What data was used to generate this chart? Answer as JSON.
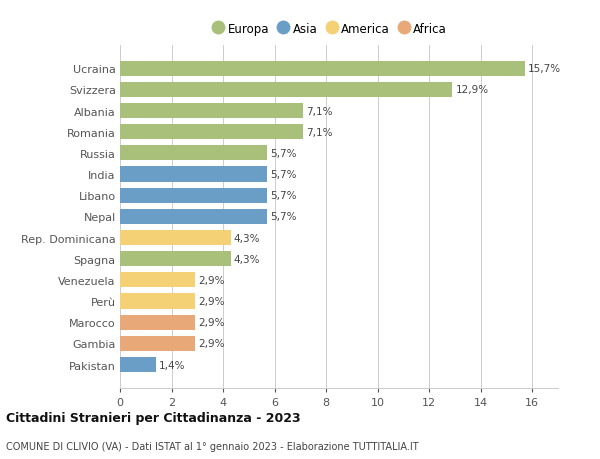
{
  "categories": [
    "Ucraina",
    "Svizzera",
    "Albania",
    "Romania",
    "Russia",
    "India",
    "Libano",
    "Nepal",
    "Rep. Dominicana",
    "Spagna",
    "Venezuela",
    "Perù",
    "Marocco",
    "Gambia",
    "Pakistan"
  ],
  "values": [
    15.7,
    12.9,
    7.1,
    7.1,
    5.7,
    5.7,
    5.7,
    5.7,
    4.3,
    4.3,
    2.9,
    2.9,
    2.9,
    2.9,
    1.4
  ],
  "labels": [
    "15,7%",
    "12,9%",
    "7,1%",
    "7,1%",
    "5,7%",
    "5,7%",
    "5,7%",
    "5,7%",
    "4,3%",
    "4,3%",
    "2,9%",
    "2,9%",
    "2,9%",
    "2,9%",
    "1,4%"
  ],
  "continents": [
    "Europa",
    "Europa",
    "Europa",
    "Europa",
    "Europa",
    "Asia",
    "Asia",
    "Asia",
    "America",
    "Europa",
    "America",
    "America",
    "Africa",
    "Africa",
    "Asia"
  ],
  "colors": {
    "Europa": "#a8c07a",
    "Asia": "#6b9ec7",
    "America": "#f5d176",
    "Africa": "#e8a878"
  },
  "xlim": [
    0,
    17
  ],
  "xticks": [
    0,
    2,
    4,
    6,
    8,
    10,
    12,
    14,
    16
  ],
  "title": "Cittadini Stranieri per Cittadinanza - 2023",
  "subtitle": "COMUNE DI CLIVIO (VA) - Dati ISTAT al 1° gennaio 2023 - Elaborazione TUTTITALIA.IT",
  "background_color": "#ffffff",
  "bar_height": 0.72,
  "grid_color": "#cccccc",
  "label_fontsize": 7.5,
  "ytick_fontsize": 8.0,
  "xtick_fontsize": 8.0,
  "legend_order": [
    "Europa",
    "Asia",
    "America",
    "Africa"
  ]
}
